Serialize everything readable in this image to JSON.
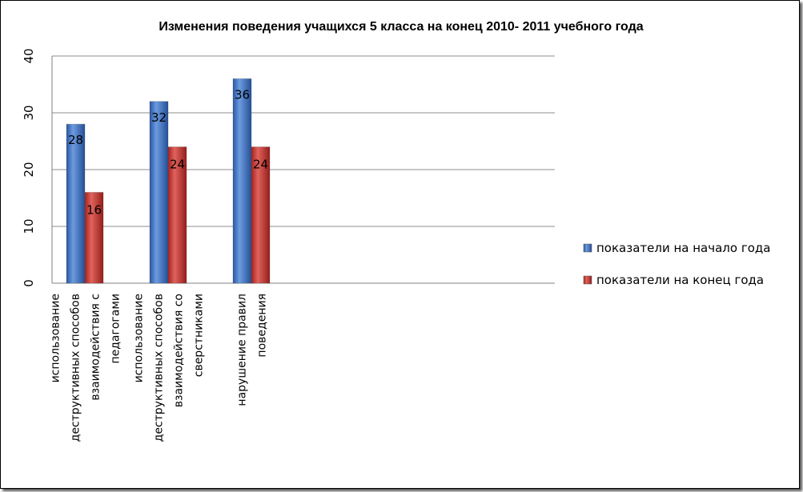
{
  "chart_data": {
    "type": "bar",
    "title": "Изменения поведения учащихся 5 класса на конец 2010- 2011  учебного года",
    "categories": [
      [
        "использование",
        "деструктивных способов",
        "взаимодействия с",
        "педагогами"
      ],
      [
        "использование",
        "деструктивных способов",
        "взаимодействия со",
        "сверстниками"
      ],
      [
        "нарушение правил",
        "поведения"
      ]
    ],
    "series": [
      {
        "name": "показатели на начало года",
        "values": [
          28,
          32,
          36
        ],
        "color": "#3d6fc0"
      },
      {
        "name": "показатели на конец года",
        "values": [
          16,
          24,
          24
        ],
        "color": "#c3302b"
      }
    ],
    "ylim": [
      0,
      40
    ],
    "yticks": [
      0,
      10,
      20,
      30,
      40
    ],
    "grid": true,
    "legend_position": "right"
  }
}
